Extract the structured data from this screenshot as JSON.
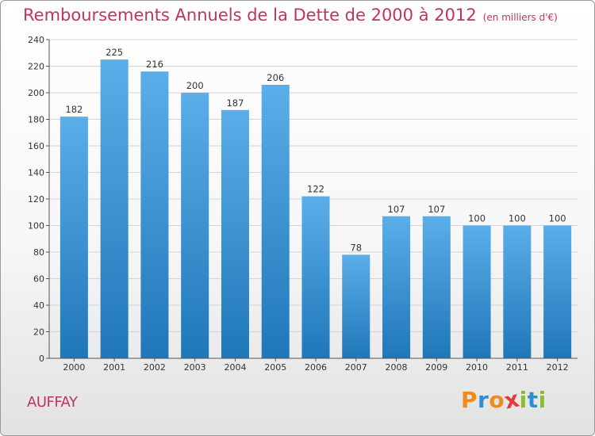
{
  "header": {
    "title": "Remboursements Annuels de la Dette de 2000 à 2012",
    "subtitle": "(en milliers d'€)"
  },
  "footer": {
    "commune": "AUFFAY",
    "logo_text": "Proxiti"
  },
  "colors": {
    "title": "#c0335f",
    "bar_top": "#5aaee9",
    "bar_bottom": "#2077b8",
    "logo_letters": [
      "#f08a1c",
      "#2f8fd1",
      "#f08a1c",
      "#e23b3b",
      "#8dbd2f",
      "#2f8fd1",
      "#8dbd2f"
    ]
  },
  "chart_data": {
    "type": "bar",
    "categories": [
      "2000",
      "2001",
      "2002",
      "2003",
      "2004",
      "2005",
      "2006",
      "2007",
      "2008",
      "2009",
      "2010",
      "2011",
      "2012"
    ],
    "values": [
      182,
      225,
      216,
      200,
      187,
      206,
      122,
      78,
      107,
      107,
      100,
      100,
      100
    ],
    "ylim": [
      0,
      240
    ],
    "yticks": [
      0,
      20,
      40,
      60,
      80,
      100,
      120,
      140,
      160,
      180,
      200,
      220,
      240
    ],
    "grid": true,
    "xlabel": "",
    "ylabel": ""
  }
}
